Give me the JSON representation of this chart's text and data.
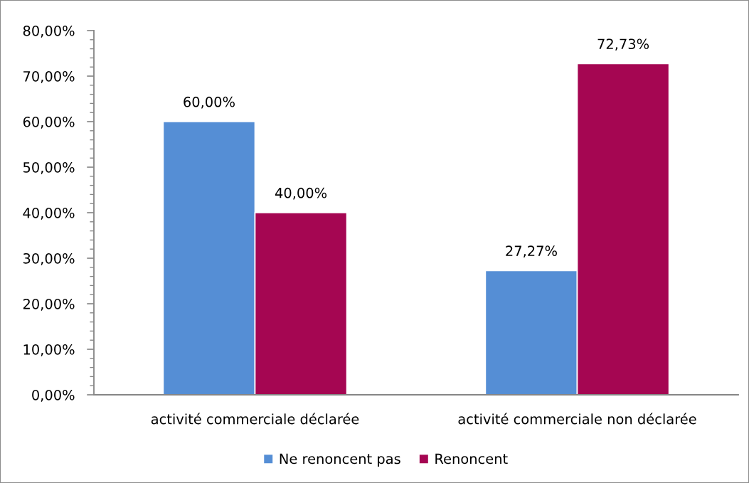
{
  "chart_data": {
    "type": "bar",
    "categories": [
      "activité commerciale déclarée",
      "activité commerciale non déclarée"
    ],
    "series": [
      {
        "name": "Ne renoncent pas",
        "color": "#558ed5",
        "values": [
          60,
          27.27
        ],
        "value_labels": [
          "60,00%",
          "27,27%"
        ]
      },
      {
        "name": "Renoncent",
        "color": "#a50652",
        "values": [
          40,
          72.73
        ],
        "value_labels": [
          "40,00%",
          "72,73%"
        ]
      }
    ],
    "ylim": [
      0,
      80
    ],
    "yticks": [
      {
        "value": 0,
        "label": "0,00%"
      },
      {
        "value": 2,
        "label": null
      },
      {
        "value": 4,
        "label": null
      },
      {
        "value": 6,
        "label": null
      },
      {
        "value": 8,
        "label": null
      },
      {
        "value": 10,
        "label": "10,00%"
      },
      {
        "value": 12,
        "label": null
      },
      {
        "value": 14,
        "label": null
      },
      {
        "value": 16,
        "label": null
      },
      {
        "value": 18,
        "label": null
      },
      {
        "value": 20,
        "label": "20,00%"
      },
      {
        "value": 22,
        "label": null
      },
      {
        "value": 24,
        "label": null
      },
      {
        "value": 26,
        "label": null
      },
      {
        "value": 28,
        "label": null
      },
      {
        "value": 30,
        "label": "30,00%"
      },
      {
        "value": 32,
        "label": null
      },
      {
        "value": 34,
        "label": null
      },
      {
        "value": 36,
        "label": null
      },
      {
        "value": 38,
        "label": null
      },
      {
        "value": 40,
        "label": "40,00%"
      },
      {
        "value": 42,
        "label": null
      },
      {
        "value": 44,
        "label": null
      },
      {
        "value": 46,
        "label": null
      },
      {
        "value": 48,
        "label": null
      },
      {
        "value": 50,
        "label": "50,00%"
      },
      {
        "value": 52,
        "label": null
      },
      {
        "value": 54,
        "label": null
      },
      {
        "value": 56,
        "label": null
      },
      {
        "value": 58,
        "label": null
      },
      {
        "value": 60,
        "label": "60,00%"
      },
      {
        "value": 62,
        "label": null
      },
      {
        "value": 64,
        "label": null
      },
      {
        "value": 66,
        "label": null
      },
      {
        "value": 68,
        "label": null
      },
      {
        "value": 70,
        "label": "70,00%"
      },
      {
        "value": 72,
        "label": null
      },
      {
        "value": 74,
        "label": null
      },
      {
        "value": 76,
        "label": null
      },
      {
        "value": 78,
        "label": null
      },
      {
        "value": 80,
        "label": "80,00%"
      }
    ],
    "legend": "bottom",
    "grid": false
  }
}
